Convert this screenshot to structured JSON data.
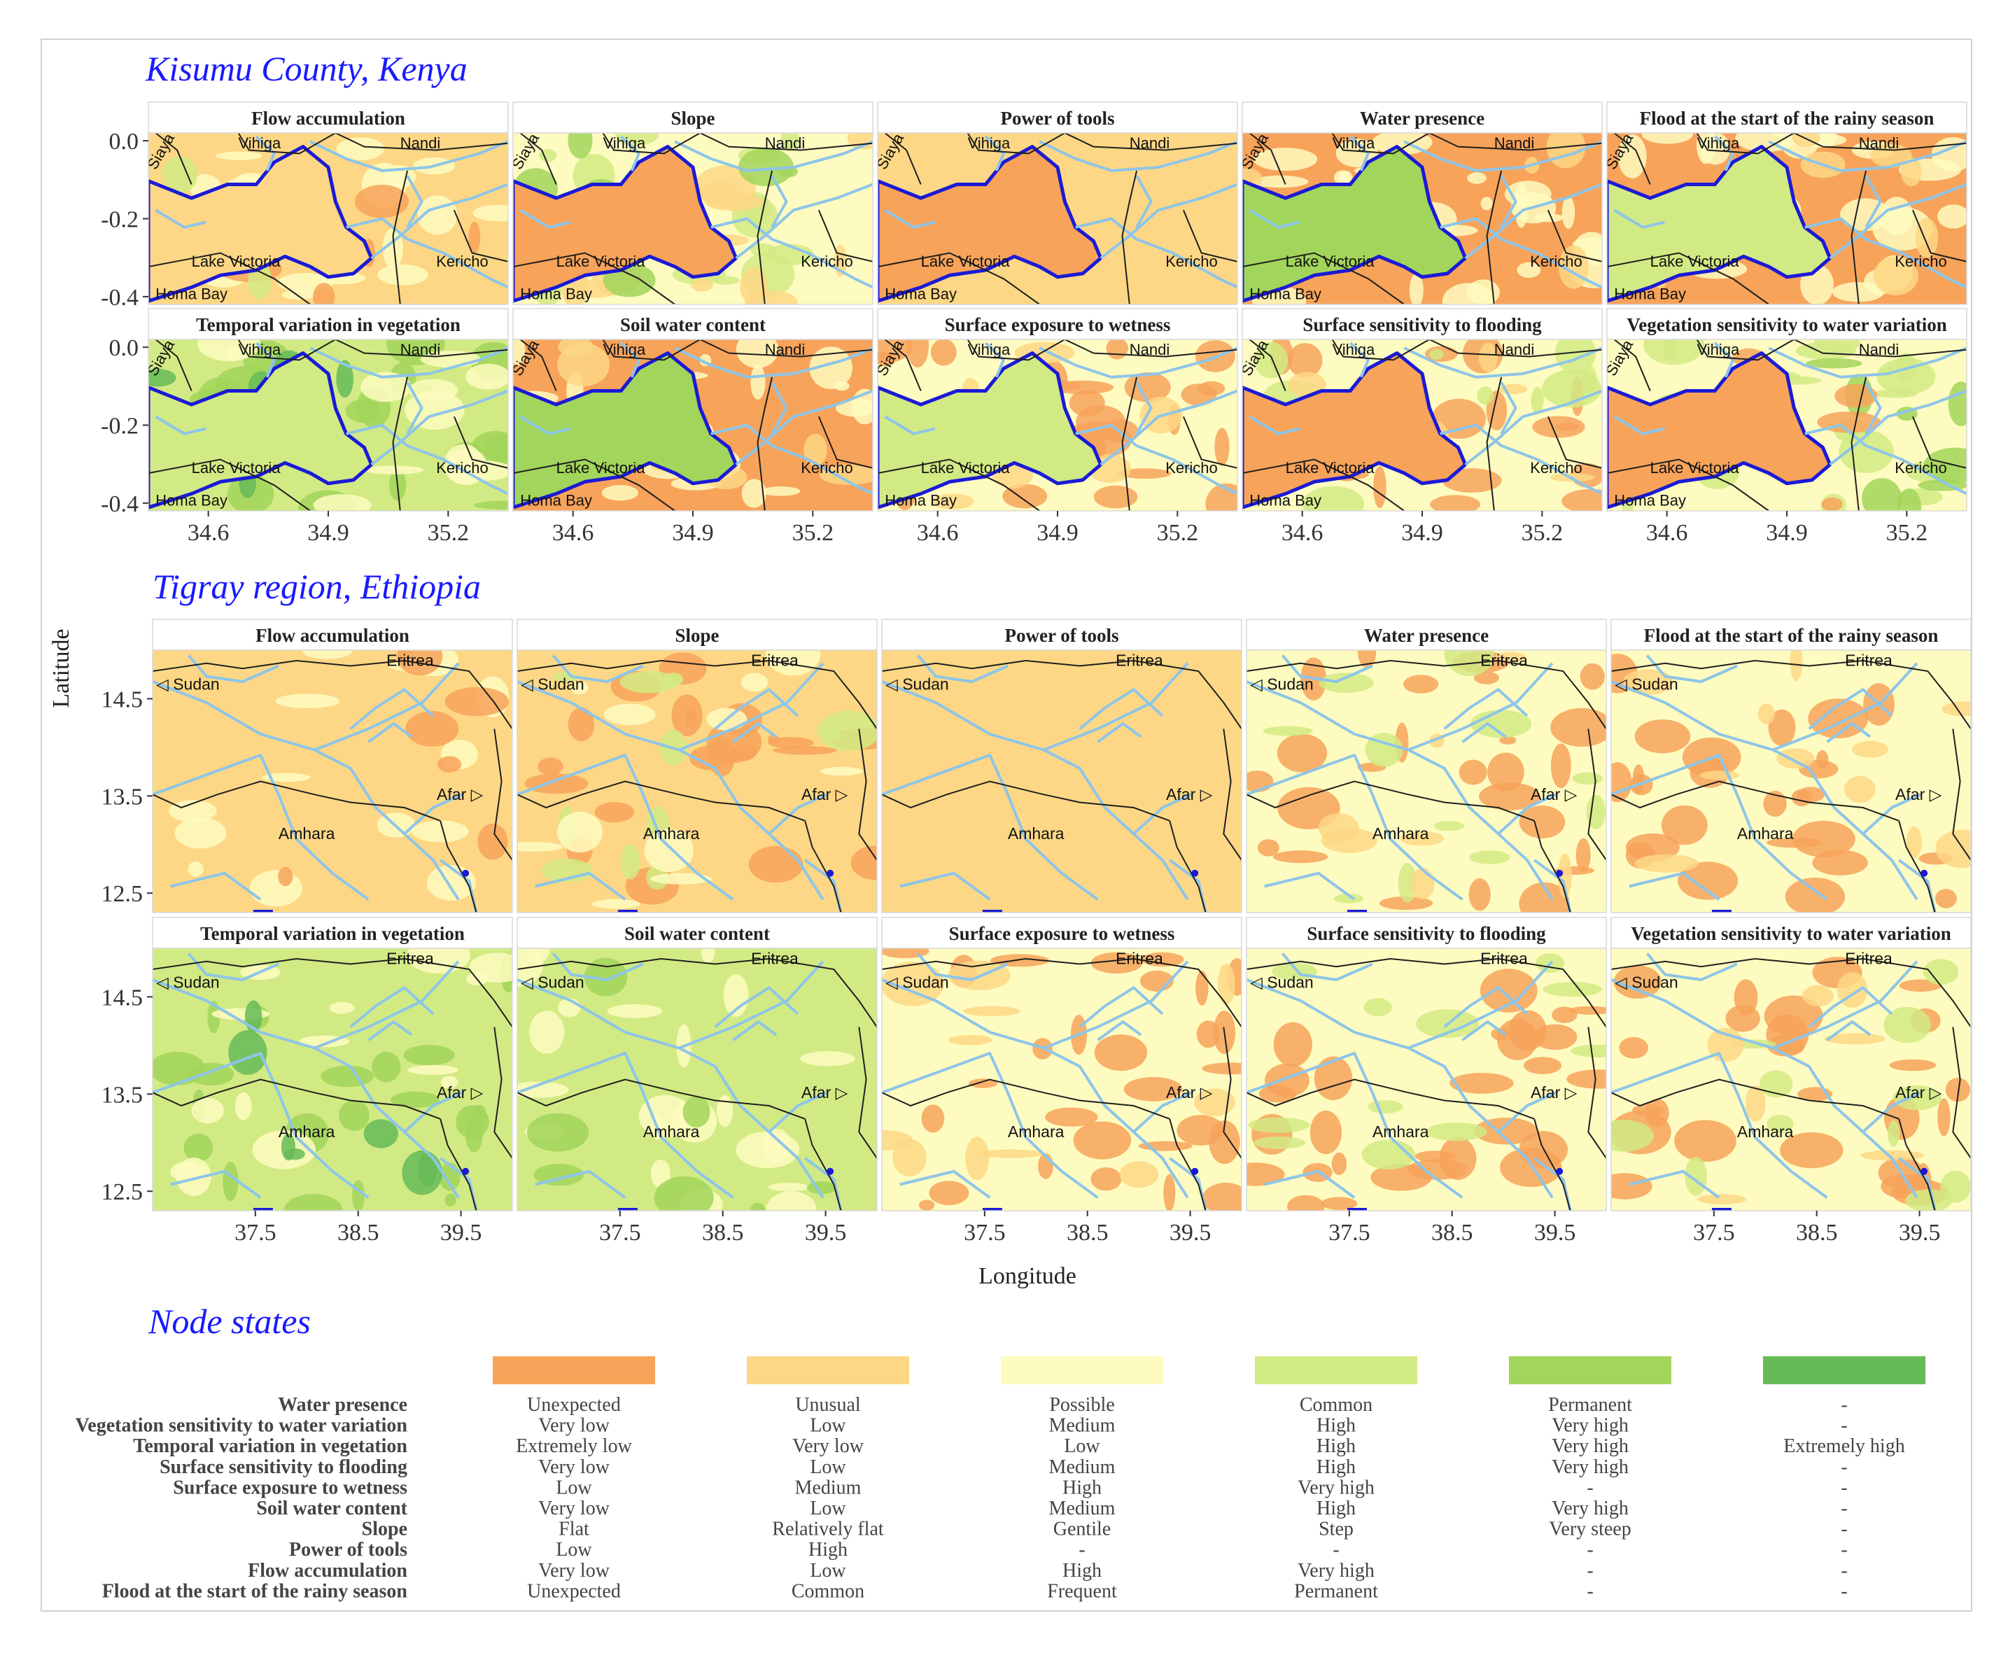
{
  "figure": {
    "ylabel": "Latitude",
    "xlabel": "Longitude"
  },
  "colors": {
    "state_1": "#f7a35a",
    "state_2": "#fdd785",
    "state_3": "#fefbc0",
    "state_4": "#d2ea84",
    "state_5": "#a2d55b",
    "state_6": "#66bb57",
    "river": "#8ec5e8",
    "border": "#1f1f1f",
    "lake": "#1a1ad6",
    "title": "#1a1aff"
  },
  "chart_data": [
    {
      "type": "heatmap",
      "region_title": "Kisumu County, Kenya",
      "xlim": [
        34.45,
        35.35
      ],
      "ylim": [
        -0.42,
        0.02
      ],
      "x_ticks": [
        "34.6",
        "34.9",
        "35.2"
      ],
      "x_tick_values": [
        34.6,
        34.9,
        35.2
      ],
      "y_ticks": [
        "0.0",
        "-0.2",
        "-0.4"
      ],
      "y_tick_values": [
        0.0,
        -0.2,
        -0.4
      ],
      "place_labels": [
        "Siaya",
        "Vihiga",
        "Nandi",
        "Lake Victoria",
        "Kericho",
        "Homa Bay"
      ],
      "panels": [
        {
          "title": "Flow accumulation",
          "base": 2,
          "lake": 2,
          "noise": [
            [
              3,
              0.25
            ],
            [
              1,
              0.08
            ],
            [
              4,
              0.05
            ]
          ]
        },
        {
          "title": "Slope",
          "base": 3,
          "lake": 1,
          "noise": [
            [
              4,
              0.3
            ],
            [
              2,
              0.2
            ],
            [
              5,
              0.1
            ]
          ]
        },
        {
          "title": "Power of tools",
          "base": 2,
          "lake": 1,
          "noise": []
        },
        {
          "title": "Water presence",
          "base": 1,
          "lake": 5,
          "noise": [
            [
              3,
              0.35
            ],
            [
              2,
              0.1
            ]
          ]
        },
        {
          "title": "Flood at the start of the rainy season",
          "base": 1,
          "lake": 4,
          "noise": [
            [
              3,
              0.4
            ],
            [
              2,
              0.1
            ]
          ]
        },
        {
          "title": "Temporal variation in vegetation",
          "base": 4,
          "lake": 4,
          "noise": [
            [
              5,
              0.35
            ],
            [
              3,
              0.2
            ],
            [
              6,
              0.1
            ]
          ]
        },
        {
          "title": "Soil water content",
          "base": 1,
          "lake": 5,
          "noise": [
            [
              3,
              0.35
            ],
            [
              2,
              0.1
            ]
          ]
        },
        {
          "title": "Surface exposure to wetness",
          "base": 3,
          "lake": 4,
          "noise": [
            [
              1,
              0.45
            ],
            [
              2,
              0.1
            ]
          ]
        },
        {
          "title": "Surface sensitivity to flooding",
          "base": 3,
          "lake": 1,
          "noise": [
            [
              1,
              0.35
            ],
            [
              4,
              0.15
            ],
            [
              2,
              0.1
            ]
          ]
        },
        {
          "title": "Vegetation sensitivity to water variation",
          "base": 3,
          "lake": 1,
          "noise": [
            [
              4,
              0.3
            ],
            [
              5,
              0.15
            ],
            [
              1,
              0.1
            ]
          ]
        }
      ]
    },
    {
      "type": "heatmap",
      "region_title": "Tigray region, Ethiopia",
      "xlim": [
        36.5,
        40.0
      ],
      "ylim": [
        12.3,
        15.0
      ],
      "x_ticks": [
        "37.5",
        "38.5",
        "39.5"
      ],
      "x_tick_values": [
        37.5,
        38.5,
        39.5
      ],
      "y_ticks": [
        "14.5",
        "13.5",
        "12.5"
      ],
      "y_tick_values": [
        14.5,
        13.5,
        12.5
      ],
      "place_labels": [
        "Eritrea",
        "◁ Sudan",
        "Afar ▷",
        "Amhara"
      ],
      "panels": [
        {
          "title": "Flow accumulation",
          "base": 2,
          "noise": [
            [
              3,
              0.2
            ],
            [
              1,
              0.08
            ]
          ]
        },
        {
          "title": "Slope",
          "base": 2,
          "noise": [
            [
              1,
              0.3
            ],
            [
              4,
              0.15
            ],
            [
              3,
              0.15
            ]
          ]
        },
        {
          "title": "Power of tools",
          "base": 2,
          "noise": []
        },
        {
          "title": "Water presence",
          "base": 3,
          "noise": [
            [
              1,
              0.35
            ],
            [
              4,
              0.15
            ],
            [
              2,
              0.1
            ]
          ]
        },
        {
          "title": "Flood at the start of the rainy season",
          "base": 3,
          "noise": [
            [
              1,
              0.35
            ],
            [
              2,
              0.15
            ]
          ]
        },
        {
          "title": "Temporal variation in vegetation",
          "base": 4,
          "noise": [
            [
              5,
              0.3
            ],
            [
              3,
              0.2
            ],
            [
              6,
              0.1
            ]
          ]
        },
        {
          "title": "Soil water content",
          "base": 4,
          "noise": [
            [
              3,
              0.3
            ],
            [
              5,
              0.1
            ]
          ]
        },
        {
          "title": "Surface exposure to wetness",
          "base": 3,
          "noise": [
            [
              1,
              0.4
            ],
            [
              2,
              0.15
            ]
          ]
        },
        {
          "title": "Surface sensitivity to flooding",
          "base": 3,
          "noise": [
            [
              1,
              0.4
            ],
            [
              4,
              0.15
            ]
          ]
        },
        {
          "title": "Vegetation sensitivity to water variation",
          "base": 3,
          "noise": [
            [
              1,
              0.35
            ],
            [
              4,
              0.15
            ],
            [
              2,
              0.1
            ]
          ]
        }
      ]
    }
  ],
  "legend": {
    "title": "Node states",
    "rows": [
      {
        "label": "Water presence",
        "states": [
          "Unexpected",
          "Unusual",
          "Possible",
          "Common",
          "Permanent",
          "-"
        ]
      },
      {
        "label": "Vegetation sensitivity to water variation",
        "states": [
          "Very low",
          "Low",
          "Medium",
          "High",
          "Very high",
          "-"
        ]
      },
      {
        "label": "Temporal variation in vegetation",
        "states": [
          "Extremely low",
          "Very low",
          "Low",
          "High",
          "Very high",
          "Extremely high"
        ]
      },
      {
        "label": "Surface sensitivity to flooding",
        "states": [
          "Very low",
          "Low",
          "Medium",
          "High",
          "Very high",
          "-"
        ]
      },
      {
        "label": "Surface exposure to wetness",
        "states": [
          "Low",
          "Medium",
          "High",
          "Very high",
          "-",
          "-"
        ]
      },
      {
        "label": "Soil water content",
        "states": [
          "Very low",
          "Low",
          "Medium",
          "High",
          "Very high",
          "-"
        ]
      },
      {
        "label": "Slope",
        "states": [
          "Flat",
          "Relatively flat",
          "Gentile",
          "Step",
          "Very steep",
          "-"
        ]
      },
      {
        "label": "Power of tools",
        "states": [
          "Low",
          "High",
          "-",
          "-",
          "-",
          "-"
        ]
      },
      {
        "label": "Flow accumulation",
        "states": [
          "Very low",
          "Low",
          "High",
          "Very high",
          "-",
          "-"
        ]
      },
      {
        "label": "Flood at the start of the rainy season",
        "states": [
          "Unexpected",
          "Common",
          "Frequent",
          "Permanent",
          "-",
          "-"
        ]
      }
    ]
  }
}
